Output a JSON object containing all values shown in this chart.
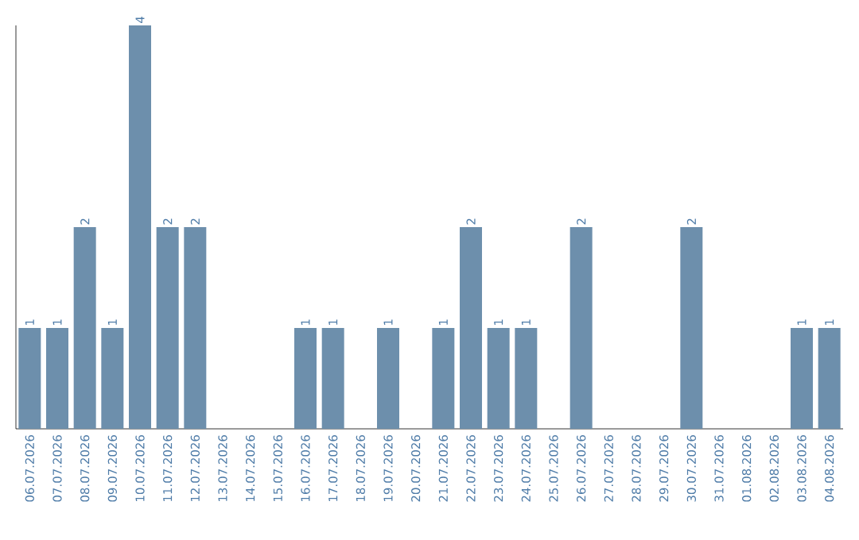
{
  "chart_data": {
    "type": "bar",
    "categories": [
      "06.07.2026",
      "07.07.2026",
      "08.07.2026",
      "09.07.2026",
      "10.07.2026",
      "11.07.2026",
      "12.07.2026",
      "13.07.2026",
      "14.07.2026",
      "15.07.2026",
      "16.07.2026",
      "17.07.2026",
      "18.07.2026",
      "19.07.2026",
      "20.07.2026",
      "21.07.2026",
      "22.07.2026",
      "23.07.2026",
      "24.07.2026",
      "25.07.2026",
      "26.07.2026",
      "27.07.2026",
      "28.07.2026",
      "29.07.2026",
      "30.07.2026",
      "31.07.2026",
      "01.08.2026",
      "02.08.2026",
      "03.08.2026",
      "04.08.2026"
    ],
    "values": [
      1,
      1,
      2,
      1,
      4,
      2,
      2,
      0,
      0,
      0,
      1,
      1,
      0,
      1,
      0,
      1,
      2,
      1,
      1,
      0,
      2,
      0,
      0,
      0,
      2,
      0,
      0,
      0,
      1,
      1
    ],
    "value_labels": [
      "1",
      "1",
      "2",
      "1",
      "4",
      "2",
      "2",
      null,
      null,
      null,
      "1",
      "1",
      null,
      "1",
      null,
      "1",
      "2",
      "1",
      "1",
      null,
      "2",
      null,
      null,
      null,
      "2",
      null,
      null,
      null,
      "1",
      "1"
    ],
    "color": "#6d8fac"
  }
}
